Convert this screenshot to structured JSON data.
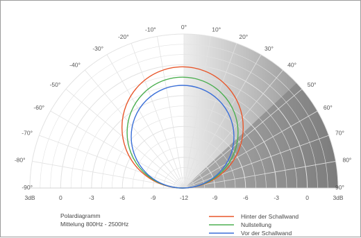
{
  "chart_data": {
    "type": "polar",
    "title": "Polardiagramm",
    "subtitle": "Mittelung 800Hz - 2500Hz",
    "angles": [
      "-90°",
      "-80°",
      "-70°",
      "-60°",
      "-50°",
      "-40°",
      "-30°",
      "-20°",
      "-10°",
      "0°",
      "10°",
      "20°",
      "30°",
      "40°",
      "50°",
      "60°",
      "70°",
      "80°",
      "90°"
    ],
    "angle_values": [
      -90,
      -80,
      -70,
      -60,
      -50,
      -40,
      -30,
      -20,
      -10,
      0,
      10,
      20,
      30,
      40,
      50,
      60,
      70,
      80,
      90
    ],
    "radial_labels_left": [
      "3dB",
      "0",
      "-3",
      "-6",
      "-9",
      "-12"
    ],
    "radial_labels_right": [
      "-12",
      "-9",
      "-6",
      "-3",
      "0",
      "3dB"
    ],
    "radial_values": [
      3,
      0,
      -3,
      -6,
      -9,
      -12
    ],
    "rlim": [
      -12,
      3
    ],
    "series": [
      {
        "name": "Hinter der Schallwand",
        "color": "#e8562a",
        "peak_db": -0.2
      },
      {
        "name": "Nullstellung",
        "color": "#4caf50",
        "peak_db": -1.2
      },
      {
        "name": "Vor der Schallwand",
        "color": "#3a6fd8",
        "peak_db": -2.0
      }
    ]
  },
  "colors": {
    "grid": "#e2e2e2",
    "shade_light": "#d2d2d2",
    "shade_dark": "#7a7a7a"
  }
}
